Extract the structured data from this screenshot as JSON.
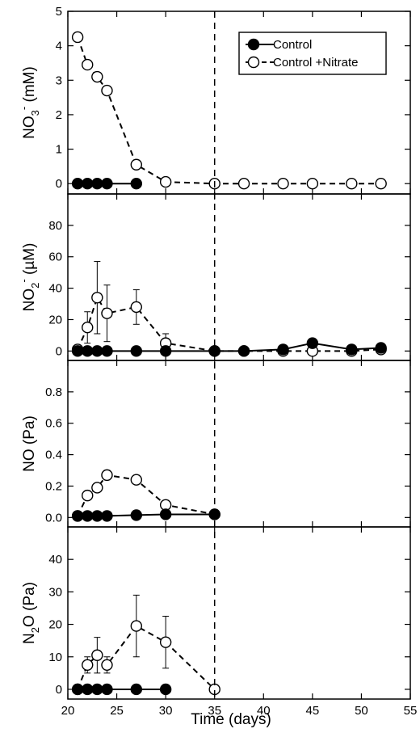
{
  "chart_data": {
    "type": "line",
    "shared_x": {
      "label": "Time (days)",
      "range": [
        20,
        55
      ],
      "ticks": [
        20,
        25,
        30,
        35,
        40,
        45,
        50,
        55
      ]
    },
    "reference_line_x": 35,
    "legend": {
      "placement": "top-right",
      "entries": [
        "Control",
        "Control +Nitrate"
      ]
    },
    "panels": [
      {
        "id": "no3",
        "ylabel_main": "NO",
        "ylabel_sub": "3",
        "ylabel_sup": "-",
        "ylabel_tail": " (mM)",
        "ylim": [
          -0.3,
          5
        ],
        "yticks": [
          0,
          1,
          2,
          3,
          4,
          5
        ],
        "ytick_labels": [
          "0",
          "1",
          "2",
          "3",
          "4",
          "5"
        ],
        "series": [
          {
            "name": "Control",
            "marker": "filled",
            "style": "solid",
            "x": [
              21,
              22,
              23,
              24,
              27
            ],
            "y": [
              0,
              0,
              0,
              0,
              0
            ]
          },
          {
            "name": "Control +Nitrate",
            "marker": "open",
            "style": "dashed",
            "x": [
              21,
              22,
              23,
              24,
              27,
              30,
              35,
              38,
              42,
              45,
              49,
              52
            ],
            "y": [
              4.25,
              3.45,
              3.1,
              2.7,
              0.55,
              0.05,
              0,
              0,
              0,
              0,
              0,
              0
            ]
          }
        ]
      },
      {
        "id": "no2",
        "ylabel_main": "NO",
        "ylabel_sub": "2",
        "ylabel_sup": "-",
        "ylabel_tail": " (µM)",
        "ylim": [
          -6,
          100
        ],
        "yticks": [
          0,
          20,
          40,
          60,
          80
        ],
        "ytick_labels": [
          "0",
          "20",
          "40",
          "60",
          "80"
        ],
        "series": [
          {
            "name": "Control",
            "marker": "filled",
            "style": "solid",
            "x": [
              21,
              22,
              23,
              24,
              27,
              30,
              35,
              38,
              42,
              45,
              49,
              52
            ],
            "y": [
              0,
              0,
              0,
              0,
              0,
              0,
              0,
              0,
              1,
              5,
              1,
              2
            ]
          },
          {
            "name": "Control +Nitrate",
            "marker": "open",
            "style": "dashed",
            "x": [
              21,
              22,
              23,
              24,
              27,
              30,
              35,
              38,
              42,
              45,
              49,
              52
            ],
            "y": [
              1,
              15,
              34,
              24,
              28,
              5,
              0,
              0,
              0,
              0,
              0,
              1
            ],
            "err": [
              0,
              10,
              23,
              18,
              11,
              6,
              0,
              0,
              0,
              0,
              0,
              0
            ]
          }
        ]
      },
      {
        "id": "no",
        "ylabel_main": "NO",
        "ylabel_sub": "",
        "ylabel_sup": "",
        "ylabel_tail": " (Pa)",
        "ylim": [
          -0.06,
          1.0
        ],
        "yticks": [
          0,
          0.2,
          0.4,
          0.6,
          0.8
        ],
        "ytick_labels": [
          "0.0",
          "0.2",
          "0.4",
          "0.6",
          "0.8"
        ],
        "series": [
          {
            "name": "Control",
            "marker": "filled",
            "style": "solid",
            "x": [
              21,
              22,
              23,
              24,
              27,
              30,
              35
            ],
            "y": [
              0.01,
              0.01,
              0.01,
              0.01,
              0.015,
              0.02,
              0.02
            ]
          },
          {
            "name": "Control +Nitrate",
            "marker": "open",
            "style": "dashed",
            "x": [
              21,
              22,
              23,
              24,
              27,
              30,
              35
            ],
            "y": [
              0.01,
              0.14,
              0.19,
              0.27,
              0.24,
              0.08,
              0.02
            ],
            "err": [
              0,
              0.02,
              0.02,
              0.03,
              0.02,
              0.02,
              0
            ]
          }
        ]
      },
      {
        "id": "n2o",
        "ylabel_main": "N",
        "ylabel_sub": "2",
        "ylabel_sup": "",
        "ylabel_tail": "O (Pa)",
        "ylim": [
          -3,
          50
        ],
        "yticks": [
          0,
          10,
          20,
          30,
          40
        ],
        "ytick_labels": [
          "0",
          "10",
          "20",
          "30",
          "40"
        ],
        "series": [
          {
            "name": "Control",
            "marker": "filled",
            "style": "solid",
            "x": [
              21,
              22,
              23,
              24,
              27,
              30
            ],
            "y": [
              0,
              0,
              0,
              0,
              0,
              0
            ]
          },
          {
            "name": "Control +Nitrate",
            "marker": "open",
            "style": "dashed",
            "x": [
              21,
              22,
              23,
              24,
              27,
              30,
              35
            ],
            "y": [
              0,
              7.5,
              10.5,
              7.5,
              19.5,
              14.5,
              0
            ],
            "err": [
              0,
              2.5,
              5.5,
              2.5,
              9.5,
              8,
              0
            ]
          }
        ]
      }
    ]
  }
}
